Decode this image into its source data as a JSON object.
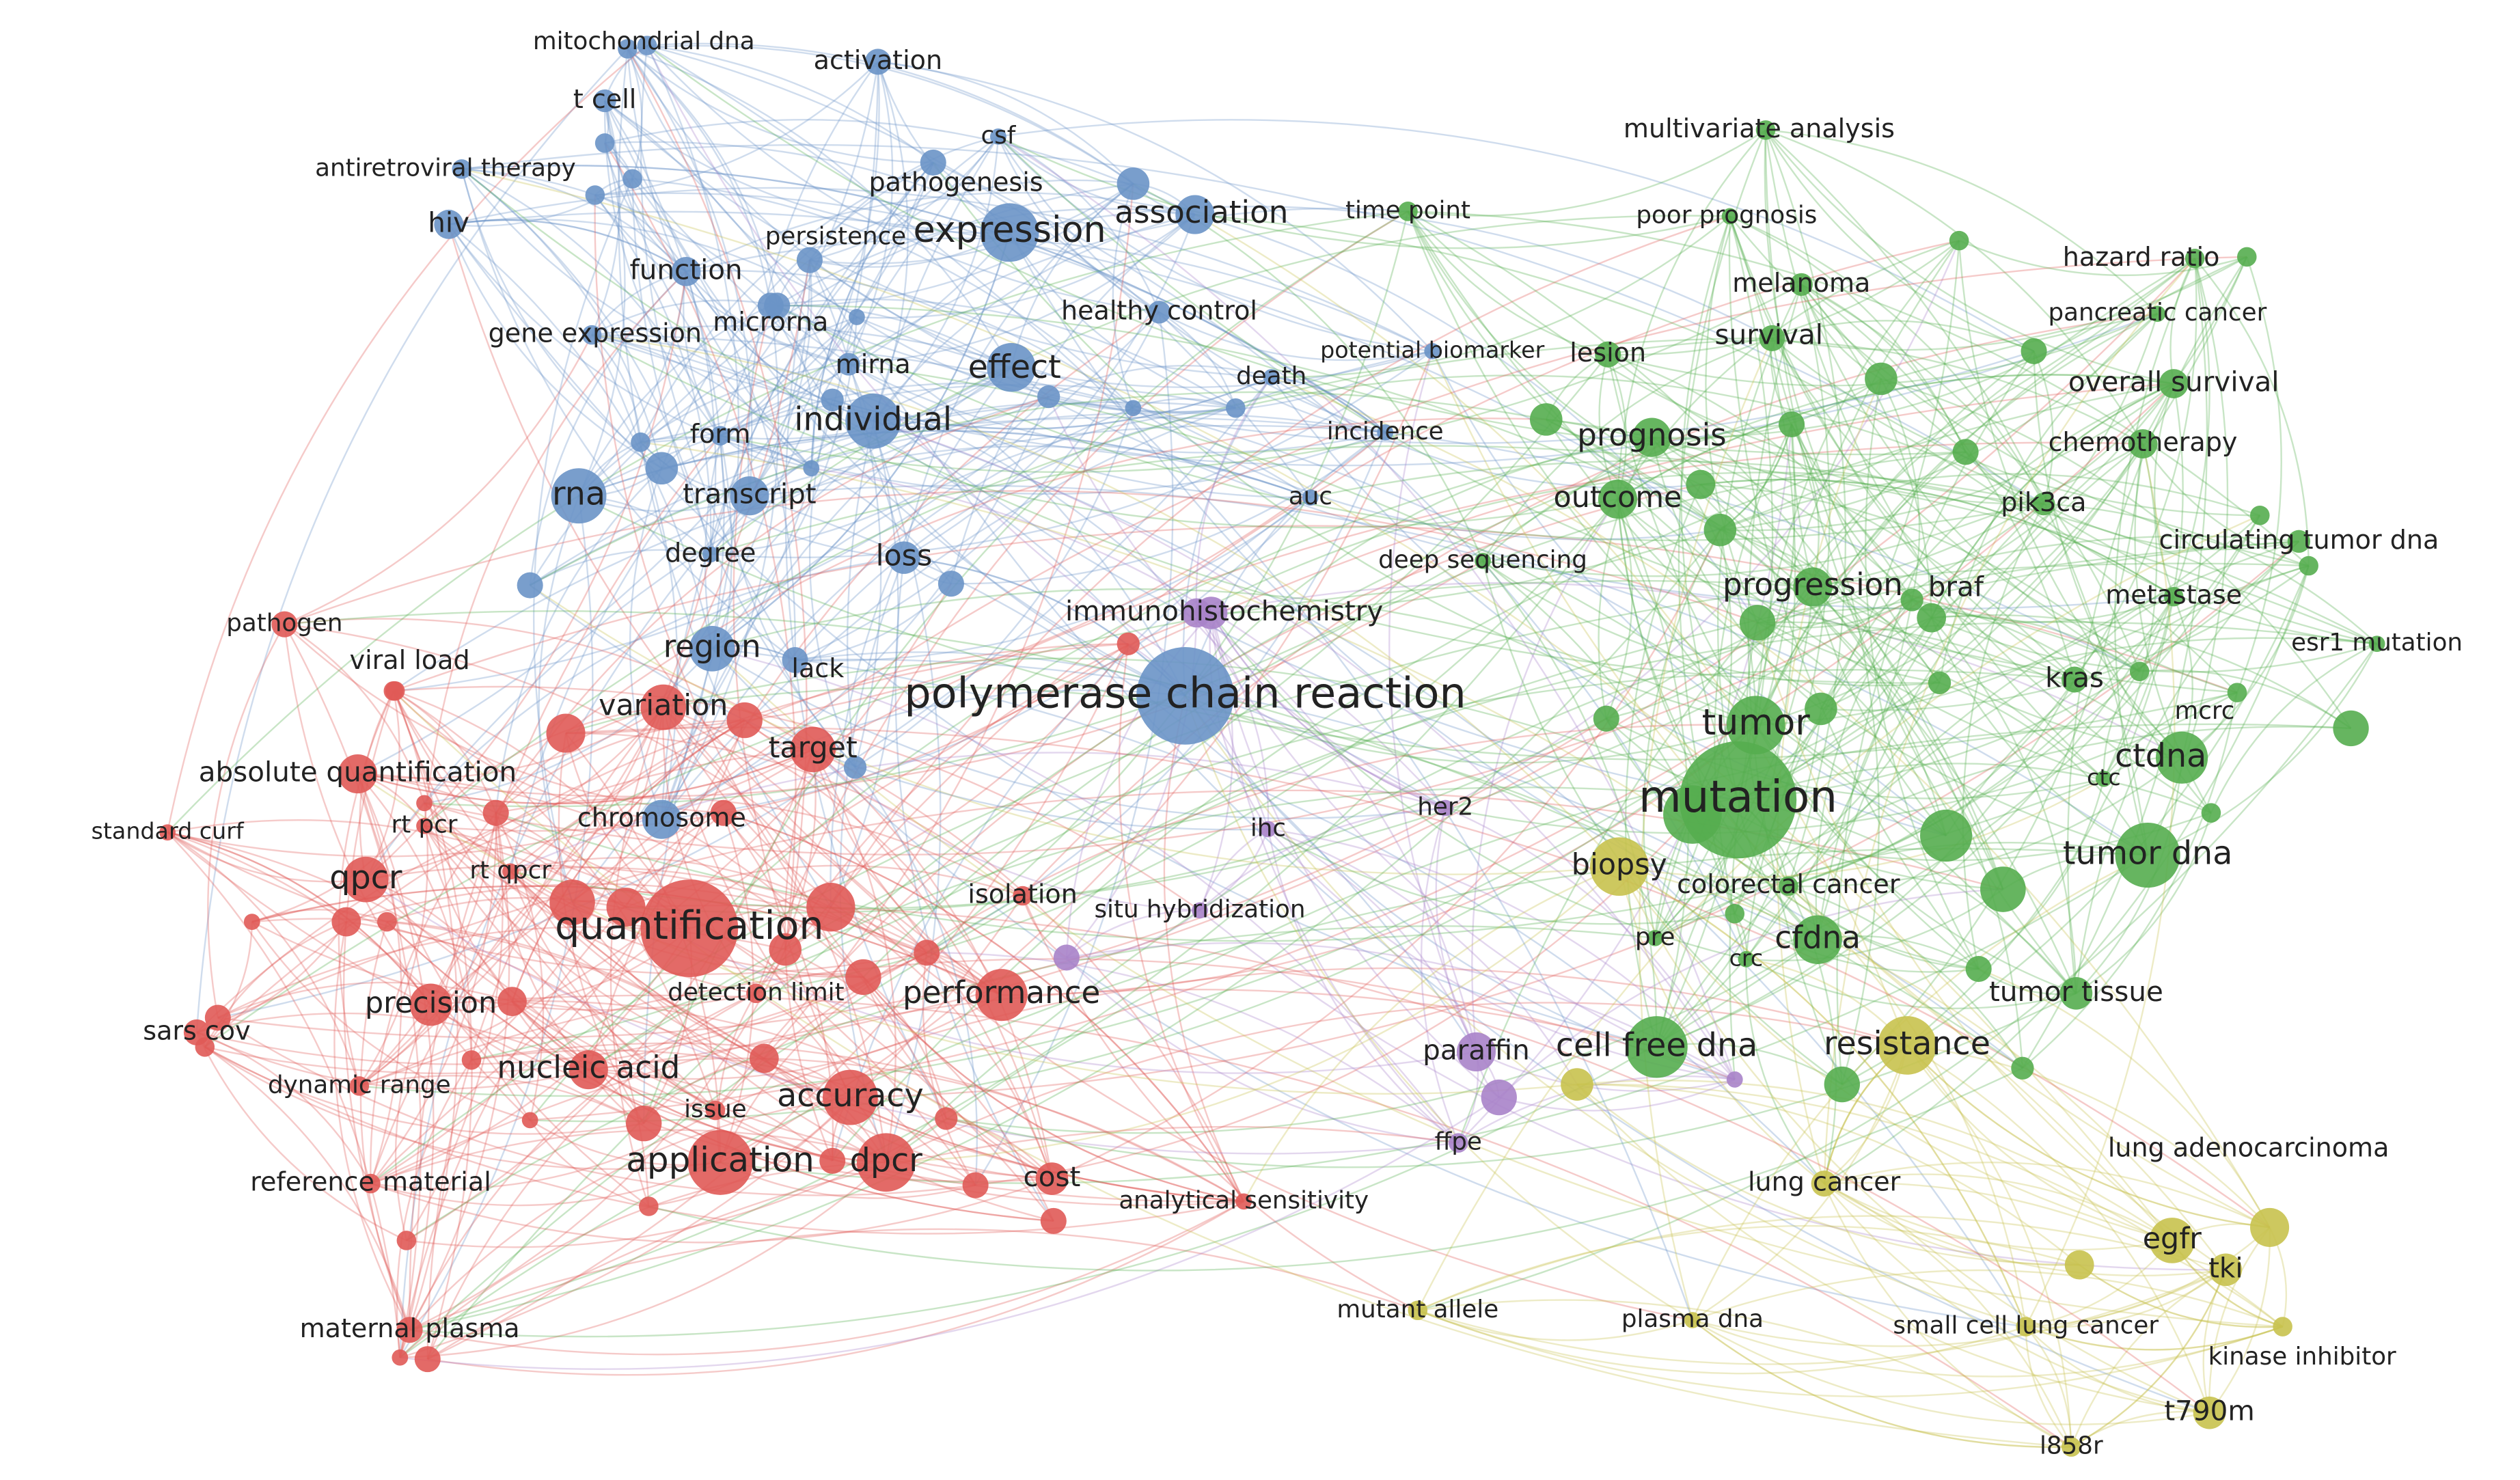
{
  "nodes": [
    {
      "label": "mitochondrial dna",
      "color": "#6a93c6"
    },
    {
      "label": "activation",
      "color": "#6a93c6"
    },
    {
      "label": "t cell",
      "color": "#6a93c6"
    },
    {
      "label": "antiretroviral therapy",
      "color": "#6a93c6"
    },
    {
      "label": "csf",
      "color": "#6a93c6"
    },
    {
      "label": "pathogenesis",
      "color": "#6a93c6"
    },
    {
      "label": "hiv",
      "color": "#6a93c6"
    },
    {
      "label": "persistence",
      "color": "#6a93c6"
    },
    {
      "label": "expression",
      "color": "#6a93c6"
    },
    {
      "label": "association",
      "color": "#6a93c6"
    },
    {
      "label": "function",
      "color": "#6a93c6"
    },
    {
      "label": "microrna",
      "color": "#6a93c6"
    },
    {
      "label": "healthy control",
      "color": "#6a93c6"
    },
    {
      "label": "gene expression",
      "color": "#6a93c6"
    },
    {
      "label": "mirna",
      "color": "#6a93c6"
    },
    {
      "label": "effect",
      "color": "#6a93c6"
    },
    {
      "label": "individual",
      "color": "#6a93c6"
    },
    {
      "label": "death",
      "color": "#6a93c6"
    },
    {
      "label": "potential biomarker",
      "color": "#6a93c6"
    },
    {
      "label": "incidence",
      "color": "#6a93c6"
    },
    {
      "label": "form",
      "color": "#6a93c6"
    },
    {
      "label": "rna",
      "color": "#6a93c6"
    },
    {
      "label": "transcript",
      "color": "#6a93c6"
    },
    {
      "label": "auc",
      "color": "#6a93c6"
    },
    {
      "label": "degree",
      "color": "#6a93c6"
    },
    {
      "label": "loss",
      "color": "#6a93c6"
    },
    {
      "label": "region",
      "color": "#6a93c6"
    },
    {
      "label": "lack",
      "color": "#6a93c6"
    },
    {
      "label": "polymerase chain reaction",
      "color": "#6a93c6"
    },
    {
      "label": "chromosome",
      "color": "#6a93c6"
    },
    {
      "label": "pathogen",
      "color": "#e05a57"
    },
    {
      "label": "viral load",
      "color": "#e05a57"
    },
    {
      "label": "variation",
      "color": "#e05a57"
    },
    {
      "label": "target",
      "color": "#e05a57"
    },
    {
      "label": "absolute quantification",
      "color": "#e05a57"
    },
    {
      "label": "standard curf",
      "color": "#e05a57"
    },
    {
      "label": "rt pcr",
      "color": "#e05a57"
    },
    {
      "label": "rt qpcr",
      "color": "#e05a57"
    },
    {
      "label": "qpcr",
      "color": "#e05a57"
    },
    {
      "label": "quantification",
      "color": "#e05a57"
    },
    {
      "label": "isolation",
      "color": "#e05a57"
    },
    {
      "label": "precision",
      "color": "#e05a57"
    },
    {
      "label": "detection limit",
      "color": "#e05a57"
    },
    {
      "label": "performance",
      "color": "#e05a57"
    },
    {
      "label": "sars cov",
      "color": "#e05a57"
    },
    {
      "label": "nucleic acid",
      "color": "#e05a57"
    },
    {
      "label": "dynamic range",
      "color": "#e05a57"
    },
    {
      "label": "issue",
      "color": "#e05a57"
    },
    {
      "label": "accuracy",
      "color": "#e05a57"
    },
    {
      "label": "application",
      "color": "#e05a57"
    },
    {
      "label": "dpcr",
      "color": "#e05a57"
    },
    {
      "label": "cost",
      "color": "#e05a57"
    },
    {
      "label": "analytical sensitivity",
      "color": "#e05a57"
    },
    {
      "label": "reference material",
      "color": "#e05a57"
    },
    {
      "label": "maternal plasma",
      "color": "#e05a57"
    },
    {
      "label": "immunohistochemistry",
      "color": "#a983c9"
    },
    {
      "label": "her2",
      "color": "#a983c9"
    },
    {
      "label": "ihc",
      "color": "#a983c9"
    },
    {
      "label": "situ hybridization",
      "color": "#a983c9"
    },
    {
      "label": "paraffin",
      "color": "#a983c9"
    },
    {
      "label": "ffpe",
      "color": "#a983c9"
    },
    {
      "label": "multivariate analysis",
      "color": "#55ad4f"
    },
    {
      "label": "time point",
      "color": "#55ad4f"
    },
    {
      "label": "poor prognosis",
      "color": "#55ad4f"
    },
    {
      "label": "melanoma",
      "color": "#55ad4f"
    },
    {
      "label": "hazard ratio",
      "color": "#55ad4f"
    },
    {
      "label": "pancreatic cancer",
      "color": "#55ad4f"
    },
    {
      "label": "survival",
      "color": "#55ad4f"
    },
    {
      "label": "lesion",
      "color": "#55ad4f"
    },
    {
      "label": "overall survival",
      "color": "#55ad4f"
    },
    {
      "label": "prognosis",
      "color": "#55ad4f"
    },
    {
      "label": "chemotherapy",
      "color": "#55ad4f"
    },
    {
      "label": "outcome",
      "color": "#55ad4f"
    },
    {
      "label": "pik3ca",
      "color": "#55ad4f"
    },
    {
      "label": "circulating tumor dna",
      "color": "#55ad4f"
    },
    {
      "label": "deep sequencing",
      "color": "#55ad4f"
    },
    {
      "label": "progression",
      "color": "#55ad4f"
    },
    {
      "label": "braf",
      "color": "#55ad4f"
    },
    {
      "label": "metastase",
      "color": "#55ad4f"
    },
    {
      "label": "esr1 mutation",
      "color": "#55ad4f"
    },
    {
      "label": "kras",
      "color": "#55ad4f"
    },
    {
      "label": "tumor",
      "color": "#55ad4f"
    },
    {
      "label": "mcrc",
      "color": "#55ad4f"
    },
    {
      "label": "ctdna",
      "color": "#55ad4f"
    },
    {
      "label": "ctc",
      "color": "#55ad4f"
    },
    {
      "label": "mutation",
      "color": "#55ad4f"
    },
    {
      "label": "tumor dna",
      "color": "#55ad4f"
    },
    {
      "label": "colorectal cancer",
      "color": "#55ad4f"
    },
    {
      "label": "pre",
      "color": "#55ad4f"
    },
    {
      "label": "cfdna",
      "color": "#55ad4f"
    },
    {
      "label": "crc",
      "color": "#55ad4f"
    },
    {
      "label": "tumor tissue",
      "color": "#55ad4f"
    },
    {
      "label": "cell free dna",
      "color": "#55ad4f"
    },
    {
      "label": "biopsy",
      "color": "#c8c24e"
    },
    {
      "label": "resistance",
      "color": "#c8c24e"
    },
    {
      "label": "lung cancer",
      "color": "#c8c24e"
    },
    {
      "label": "lung adenocarcinoma",
      "color": "#c8c24e"
    },
    {
      "label": "egfr",
      "color": "#c8c24e"
    },
    {
      "label": "tki",
      "color": "#c8c24e"
    },
    {
      "label": "mutant allele",
      "color": "#c8c24e"
    },
    {
      "label": "plasma dna",
      "color": "#c8c24e"
    },
    {
      "label": "small cell lung cancer",
      "color": "#c8c24e"
    },
    {
      "label": "kinase inhibitor",
      "color": "#c8c24e"
    },
    {
      "label": "t790m",
      "color": "#c8c24e"
    },
    {
      "label": "l858r",
      "color": "#c8c24e"
    }
  ]
}
